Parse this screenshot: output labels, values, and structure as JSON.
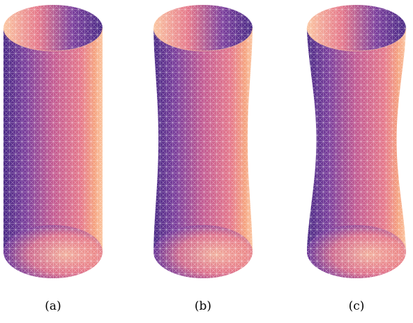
{
  "figure": {
    "panels": [
      {
        "label": "(a)",
        "waist": 0.0
      },
      {
        "label": "(b)",
        "waist": 0.1
      },
      {
        "label": "(c)",
        "waist": 0.19
      }
    ],
    "colors": {
      "deep_purple": "#4a2a85",
      "violet": "#7b3f9c",
      "magenta": "#c25a92",
      "pink": "#e5788b",
      "peach": "#f5a27f",
      "light_peach": "#fbc6a1",
      "mesh": "#ffffff"
    }
  }
}
